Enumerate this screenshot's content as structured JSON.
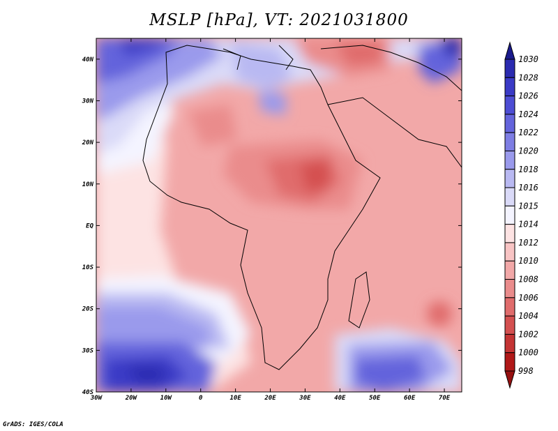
{
  "title": "MSLP [hPa], VT: 2021031800",
  "credit": "GrADS: IGES/COLA",
  "map": {
    "lon_range": [
      -30,
      75
    ],
    "lat_range": [
      -40,
      45
    ],
    "lon_ticks": [
      {
        "lon": -30,
        "label": "30W"
      },
      {
        "lon": -20,
        "label": "20W"
      },
      {
        "lon": -10,
        "label": "10W"
      },
      {
        "lon": 0,
        "label": "0"
      },
      {
        "lon": 10,
        "label": "10E"
      },
      {
        "lon": 20,
        "label": "20E"
      },
      {
        "lon": 30,
        "label": "30E"
      },
      {
        "lon": 40,
        "label": "40E"
      },
      {
        "lon": 50,
        "label": "50E"
      },
      {
        "lon": 60,
        "label": "60E"
      },
      {
        "lon": 70,
        "label": "70E"
      }
    ],
    "lat_ticks": [
      {
        "lat": 40,
        "label": "40N"
      },
      {
        "lat": 30,
        "label": "30N"
      },
      {
        "lat": 20,
        "label": "20N"
      },
      {
        "lat": 10,
        "label": "10N"
      },
      {
        "lat": 0,
        "label": "EQ"
      },
      {
        "lat": -10,
        "label": "10S"
      },
      {
        "lat": -20,
        "label": "20S"
      },
      {
        "lat": -30,
        "label": "30S"
      },
      {
        "lat": -40,
        "label": "40S"
      }
    ]
  },
  "colorbar": {
    "levels": [
      "1030",
      "1028",
      "1026",
      "1024",
      "1022",
      "1020",
      "1018",
      "1016",
      "1015",
      "1014",
      "1012",
      "1010",
      "1008",
      "1006",
      "1004",
      "1002",
      "1000",
      "998"
    ],
    "colors": [
      "#1a1a8c",
      "#2b2bb0",
      "#3a3ac6",
      "#4d4dd4",
      "#6464dc",
      "#7e7ee4",
      "#9a9aec",
      "#b9b9f2",
      "#dadaf8",
      "#f4f4ff",
      "#fde3e3",
      "#f8c4c4",
      "#f2a8a8",
      "#ea8c8c",
      "#e06c6c",
      "#d45050",
      "#c43434",
      "#b01818",
      "#961010"
    ]
  }
}
